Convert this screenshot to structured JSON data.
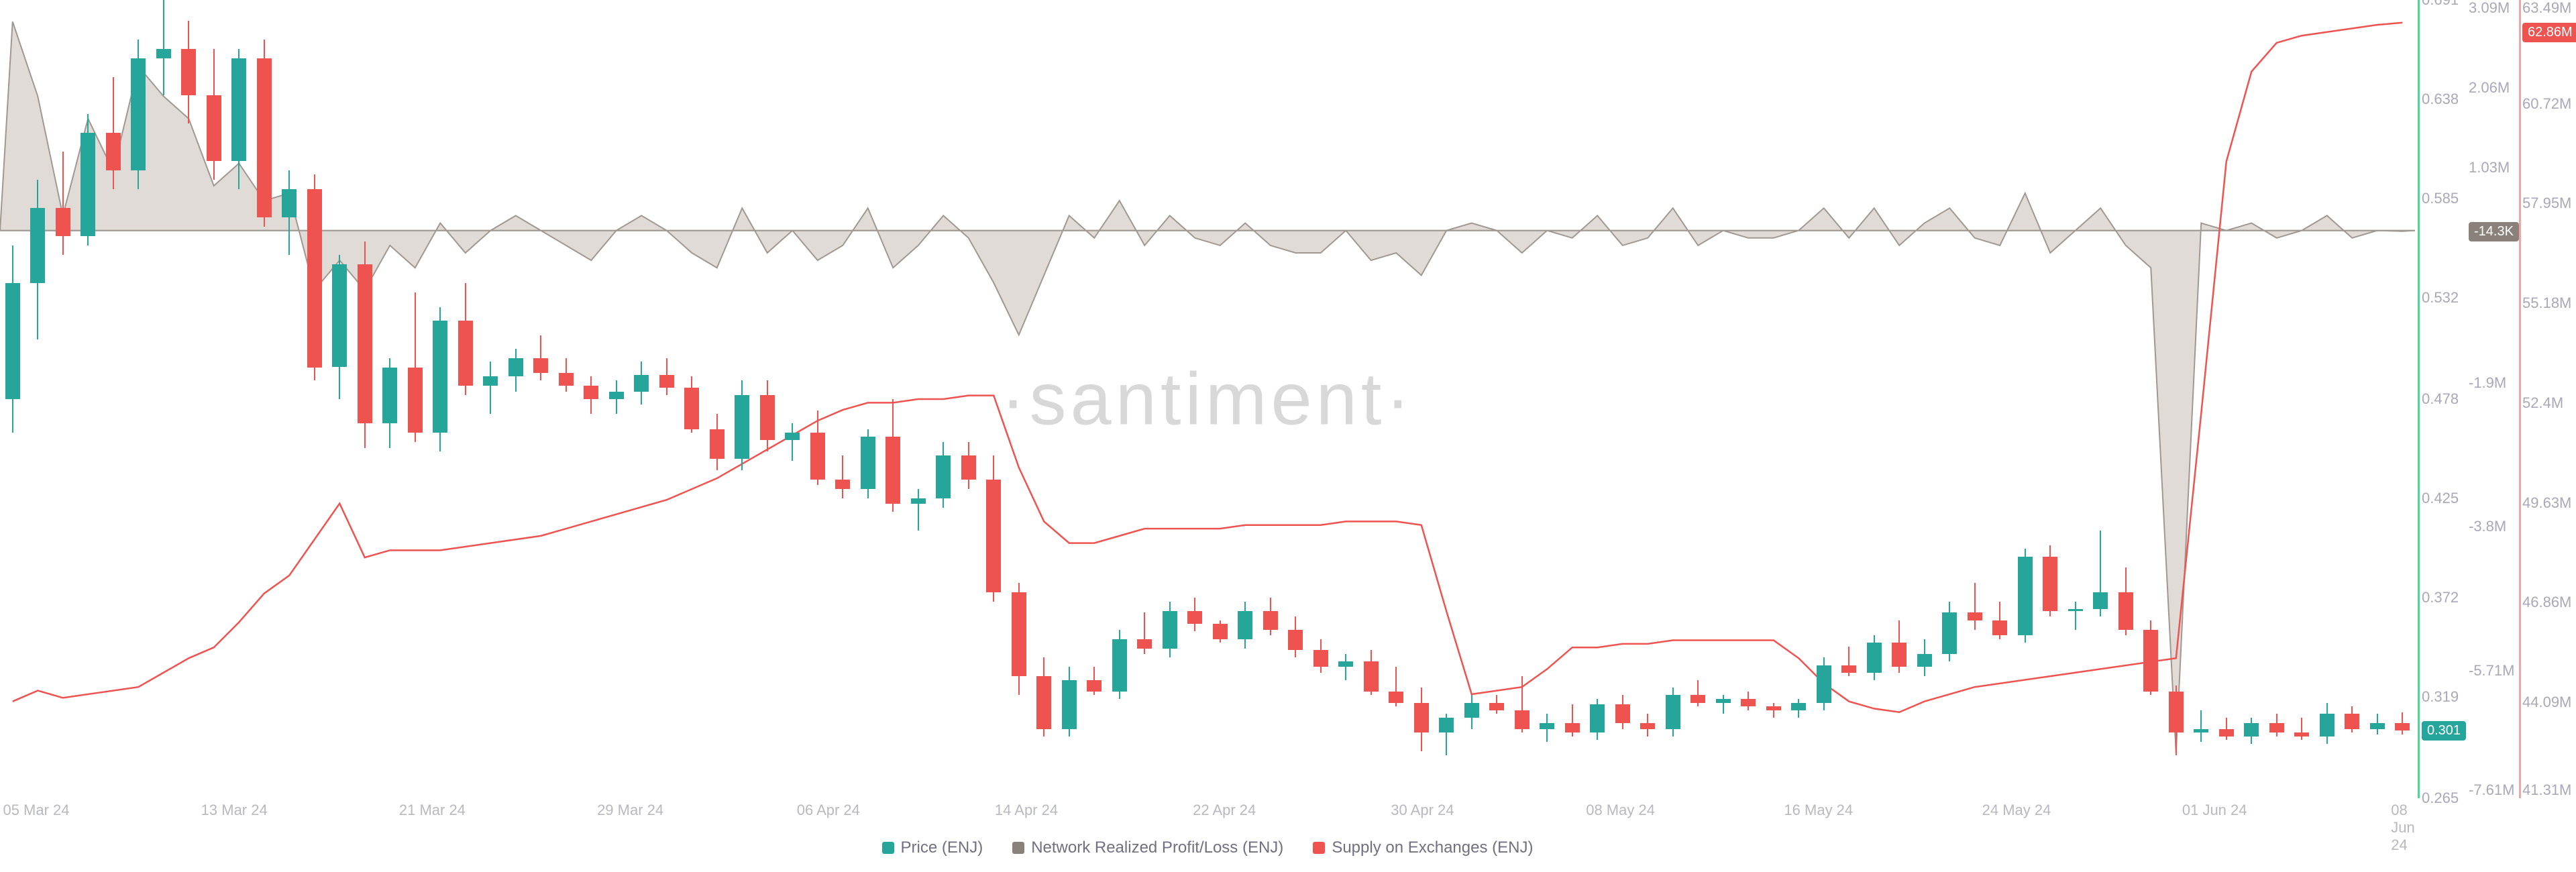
{
  "watermark": "·santiment·",
  "colors": {
    "green": "#26a69a",
    "red": "#ef5350",
    "gray_area": "#c8beb8",
    "gray_line": "#a09890",
    "supply_line": "#ef5350",
    "axis_text": "#a8a8b8",
    "xaxis_text": "#b8b8c0",
    "legend_text": "#707080",
    "baseline": "#c8c8c8",
    "price_badge_bg": "#26a69a",
    "npl_badge_bg": "#8a817a",
    "supply_badge_bg": "#ef5350",
    "y1_line": "#4dd599",
    "y3_line": "#f5a3a0"
  },
  "legend_items": [
    {
      "label": "Price (ENJ)",
      "color": "#26a69a"
    },
    {
      "label": "Network Realized Profit/Loss (ENJ)",
      "color": "#8a817a"
    },
    {
      "label": "Supply on Exchanges (ENJ)",
      "color": "#ef5350"
    }
  ],
  "x_axis": {
    "ticks": [
      "05 Mar 24",
      "13 Mar 24",
      "21 Mar 24",
      "29 Mar 24",
      "06 Apr 24",
      "14 Apr 24",
      "22 Apr 24",
      "30 Apr 24",
      "08 May 24",
      "16 May 24",
      "24 May 24",
      "01 Jun 24",
      "08 Jun 24"
    ],
    "positions_pct": [
      1.5,
      9.7,
      17.9,
      26.1,
      34.3,
      42.5,
      50.7,
      58.9,
      67.1,
      75.3,
      83.5,
      91.7,
      99.5
    ]
  },
  "y_axis_price": {
    "min": 0.265,
    "max": 0.691,
    "ticks": [
      0.691,
      0.638,
      0.585,
      0.532,
      0.478,
      0.425,
      0.372,
      0.319,
      0.265
    ],
    "badge_value": "0.301"
  },
  "y_axis_npl": {
    "min": -7610000,
    "max": 3090000,
    "ticks": [
      "3.09M",
      "2.06M",
      "1.03M",
      "",
      "-1.9M",
      "-3.8M",
      "-5.71M",
      "-7.61M"
    ],
    "tick_positions_pct": [
      1,
      11,
      21,
      null,
      48,
      66,
      84,
      99
    ],
    "baseline_pct": 29,
    "badge_value": "-14.3K",
    "badge_y_pct": 29
  },
  "y_axis_supply": {
    "min": 41310000,
    "max": 63490000,
    "ticks": [
      "63.49M",
      "62.86M",
      "60.72M",
      "57.95M",
      "55.18M",
      "52.4M",
      "49.63M",
      "46.86M",
      "44.09M",
      "41.31M"
    ],
    "tick_positions_pct": [
      1,
      4,
      13,
      25.5,
      38,
      50.5,
      63,
      75.5,
      88,
      99
    ],
    "badge_value": "62.86M",
    "badge_y_pct": 4
  },
  "candles": [
    {
      "o": 0.478,
      "h": 0.56,
      "l": 0.46,
      "c": 0.54,
      "color": "green"
    },
    {
      "o": 0.54,
      "h": 0.595,
      "l": 0.51,
      "c": 0.58,
      "color": "green"
    },
    {
      "o": 0.58,
      "h": 0.61,
      "l": 0.555,
      "c": 0.565,
      "color": "red"
    },
    {
      "o": 0.565,
      "h": 0.63,
      "l": 0.56,
      "c": 0.62,
      "color": "green"
    },
    {
      "o": 0.62,
      "h": 0.65,
      "l": 0.59,
      "c": 0.6,
      "color": "red"
    },
    {
      "o": 0.6,
      "h": 0.67,
      "l": 0.59,
      "c": 0.66,
      "color": "green"
    },
    {
      "o": 0.66,
      "h": 0.691,
      "l": 0.64,
      "c": 0.665,
      "color": "green"
    },
    {
      "o": 0.665,
      "h": 0.68,
      "l": 0.625,
      "c": 0.64,
      "color": "red"
    },
    {
      "o": 0.64,
      "h": 0.665,
      "l": 0.595,
      "c": 0.605,
      "color": "red"
    },
    {
      "o": 0.605,
      "h": 0.665,
      "l": 0.59,
      "c": 0.66,
      "color": "green"
    },
    {
      "o": 0.66,
      "h": 0.67,
      "l": 0.57,
      "c": 0.575,
      "color": "red"
    },
    {
      "o": 0.575,
      "h": 0.6,
      "l": 0.555,
      "c": 0.59,
      "color": "green"
    },
    {
      "o": 0.59,
      "h": 0.598,
      "l": 0.488,
      "c": 0.495,
      "color": "red"
    },
    {
      "o": 0.495,
      "h": 0.555,
      "l": 0.478,
      "c": 0.55,
      "color": "green"
    },
    {
      "o": 0.55,
      "h": 0.562,
      "l": 0.452,
      "c": 0.465,
      "color": "red"
    },
    {
      "o": 0.465,
      "h": 0.5,
      "l": 0.452,
      "c": 0.495,
      "color": "green"
    },
    {
      "o": 0.495,
      "h": 0.535,
      "l": 0.455,
      "c": 0.46,
      "color": "red"
    },
    {
      "o": 0.46,
      "h": 0.527,
      "l": 0.45,
      "c": 0.52,
      "color": "green"
    },
    {
      "o": 0.52,
      "h": 0.54,
      "l": 0.48,
      "c": 0.485,
      "color": "red"
    },
    {
      "o": 0.485,
      "h": 0.498,
      "l": 0.47,
      "c": 0.49,
      "color": "green"
    },
    {
      "o": 0.49,
      "h": 0.505,
      "l": 0.482,
      "c": 0.5,
      "color": "green"
    },
    {
      "o": 0.5,
      "h": 0.512,
      "l": 0.488,
      "c": 0.492,
      "color": "red"
    },
    {
      "o": 0.492,
      "h": 0.5,
      "l": 0.482,
      "c": 0.485,
      "color": "red"
    },
    {
      "o": 0.485,
      "h": 0.49,
      "l": 0.47,
      "c": 0.478,
      "color": "red"
    },
    {
      "o": 0.478,
      "h": 0.488,
      "l": 0.47,
      "c": 0.482,
      "color": "green"
    },
    {
      "o": 0.482,
      "h": 0.498,
      "l": 0.475,
      "c": 0.491,
      "color": "green"
    },
    {
      "o": 0.491,
      "h": 0.5,
      "l": 0.48,
      "c": 0.484,
      "color": "red"
    },
    {
      "o": 0.484,
      "h": 0.49,
      "l": 0.46,
      "c": 0.462,
      "color": "red"
    },
    {
      "o": 0.462,
      "h": 0.47,
      "l": 0.44,
      "c": 0.446,
      "color": "red"
    },
    {
      "o": 0.446,
      "h": 0.488,
      "l": 0.44,
      "c": 0.48,
      "color": "green"
    },
    {
      "o": 0.48,
      "h": 0.488,
      "l": 0.45,
      "c": 0.456,
      "color": "red"
    },
    {
      "o": 0.456,
      "h": 0.465,
      "l": 0.445,
      "c": 0.46,
      "color": "green"
    },
    {
      "o": 0.46,
      "h": 0.472,
      "l": 0.432,
      "c": 0.435,
      "color": "red"
    },
    {
      "o": 0.435,
      "h": 0.448,
      "l": 0.425,
      "c": 0.43,
      "color": "red"
    },
    {
      "o": 0.43,
      "h": 0.462,
      "l": 0.425,
      "c": 0.458,
      "color": "green"
    },
    {
      "o": 0.458,
      "h": 0.478,
      "l": 0.418,
      "c": 0.422,
      "color": "red"
    },
    {
      "o": 0.422,
      "h": 0.43,
      "l": 0.408,
      "c": 0.425,
      "color": "green"
    },
    {
      "o": 0.425,
      "h": 0.455,
      "l": 0.42,
      "c": 0.448,
      "color": "green"
    },
    {
      "o": 0.448,
      "h": 0.455,
      "l": 0.43,
      "c": 0.435,
      "color": "red"
    },
    {
      "o": 0.435,
      "h": 0.448,
      "l": 0.37,
      "c": 0.375,
      "color": "red"
    },
    {
      "o": 0.375,
      "h": 0.38,
      "l": 0.32,
      "c": 0.33,
      "color": "red"
    },
    {
      "o": 0.33,
      "h": 0.34,
      "l": 0.298,
      "c": 0.302,
      "color": "red"
    },
    {
      "o": 0.302,
      "h": 0.335,
      "l": 0.298,
      "c": 0.328,
      "color": "green"
    },
    {
      "o": 0.328,
      "h": 0.335,
      "l": 0.32,
      "c": 0.322,
      "color": "red"
    },
    {
      "o": 0.322,
      "h": 0.355,
      "l": 0.318,
      "c": 0.35,
      "color": "green"
    },
    {
      "o": 0.35,
      "h": 0.364,
      "l": 0.342,
      "c": 0.345,
      "color": "red"
    },
    {
      "o": 0.345,
      "h": 0.37,
      "l": 0.34,
      "c": 0.365,
      "color": "green"
    },
    {
      "o": 0.365,
      "h": 0.372,
      "l": 0.354,
      "c": 0.358,
      "color": "red"
    },
    {
      "o": 0.358,
      "h": 0.36,
      "l": 0.348,
      "c": 0.35,
      "color": "red"
    },
    {
      "o": 0.35,
      "h": 0.37,
      "l": 0.345,
      "c": 0.365,
      "color": "green"
    },
    {
      "o": 0.365,
      "h": 0.372,
      "l": 0.352,
      "c": 0.355,
      "color": "red"
    },
    {
      "o": 0.355,
      "h": 0.362,
      "l": 0.34,
      "c": 0.344,
      "color": "red"
    },
    {
      "o": 0.344,
      "h": 0.35,
      "l": 0.332,
      "c": 0.335,
      "color": "red"
    },
    {
      "o": 0.335,
      "h": 0.342,
      "l": 0.328,
      "c": 0.338,
      "color": "green"
    },
    {
      "o": 0.338,
      "h": 0.344,
      "l": 0.32,
      "c": 0.322,
      "color": "red"
    },
    {
      "o": 0.322,
      "h": 0.335,
      "l": 0.314,
      "c": 0.316,
      "color": "red"
    },
    {
      "o": 0.316,
      "h": 0.324,
      "l": 0.29,
      "c": 0.3,
      "color": "red"
    },
    {
      "o": 0.3,
      "h": 0.31,
      "l": 0.288,
      "c": 0.308,
      "color": "green"
    },
    {
      "o": 0.308,
      "h": 0.32,
      "l": 0.302,
      "c": 0.316,
      "color": "green"
    },
    {
      "o": 0.316,
      "h": 0.32,
      "l": 0.31,
      "c": 0.312,
      "color": "red"
    },
    {
      "o": 0.312,
      "h": 0.33,
      "l": 0.3,
      "c": 0.302,
      "color": "red"
    },
    {
      "o": 0.302,
      "h": 0.31,
      "l": 0.295,
      "c": 0.305,
      "color": "green"
    },
    {
      "o": 0.305,
      "h": 0.315,
      "l": 0.298,
      "c": 0.3,
      "color": "red"
    },
    {
      "o": 0.3,
      "h": 0.318,
      "l": 0.296,
      "c": 0.315,
      "color": "green"
    },
    {
      "o": 0.315,
      "h": 0.32,
      "l": 0.302,
      "c": 0.305,
      "color": "red"
    },
    {
      "o": 0.305,
      "h": 0.31,
      "l": 0.298,
      "c": 0.302,
      "color": "red"
    },
    {
      "o": 0.302,
      "h": 0.324,
      "l": 0.298,
      "c": 0.32,
      "color": "green"
    },
    {
      "o": 0.32,
      "h": 0.328,
      "l": 0.314,
      "c": 0.316,
      "color": "red"
    },
    {
      "o": 0.316,
      "h": 0.32,
      "l": 0.31,
      "c": 0.318,
      "color": "green"
    },
    {
      "o": 0.318,
      "h": 0.322,
      "l": 0.312,
      "c": 0.314,
      "color": "red"
    },
    {
      "o": 0.314,
      "h": 0.316,
      "l": 0.308,
      "c": 0.312,
      "color": "red"
    },
    {
      "o": 0.312,
      "h": 0.318,
      "l": 0.308,
      "c": 0.316,
      "color": "green"
    },
    {
      "o": 0.316,
      "h": 0.34,
      "l": 0.312,
      "c": 0.336,
      "color": "green"
    },
    {
      "o": 0.336,
      "h": 0.346,
      "l": 0.33,
      "c": 0.332,
      "color": "red"
    },
    {
      "o": 0.332,
      "h": 0.352,
      "l": 0.328,
      "c": 0.348,
      "color": "green"
    },
    {
      "o": 0.348,
      "h": 0.36,
      "l": 0.332,
      "c": 0.335,
      "color": "red"
    },
    {
      "o": 0.335,
      "h": 0.35,
      "l": 0.33,
      "c": 0.342,
      "color": "green"
    },
    {
      "o": 0.342,
      "h": 0.37,
      "l": 0.338,
      "c": 0.364,
      "color": "green"
    },
    {
      "o": 0.364,
      "h": 0.38,
      "l": 0.355,
      "c": 0.36,
      "color": "red"
    },
    {
      "o": 0.36,
      "h": 0.37,
      "l": 0.35,
      "c": 0.352,
      "color": "red"
    },
    {
      "o": 0.352,
      "h": 0.398,
      "l": 0.348,
      "c": 0.394,
      "color": "green"
    },
    {
      "o": 0.394,
      "h": 0.4,
      "l": 0.362,
      "c": 0.365,
      "color": "red"
    },
    {
      "o": 0.365,
      "h": 0.37,
      "l": 0.355,
      "c": 0.366,
      "color": "green"
    },
    {
      "o": 0.366,
      "h": 0.408,
      "l": 0.362,
      "c": 0.375,
      "color": "green"
    },
    {
      "o": 0.375,
      "h": 0.388,
      "l": 0.352,
      "c": 0.355,
      "color": "red"
    },
    {
      "o": 0.355,
      "h": 0.36,
      "l": 0.32,
      "c": 0.322,
      "color": "red"
    },
    {
      "o": 0.322,
      "h": 0.325,
      "l": 0.288,
      "c": 0.3,
      "color": "red"
    },
    {
      "o": 0.3,
      "h": 0.312,
      "l": 0.295,
      "c": 0.302,
      "color": "green"
    },
    {
      "o": 0.302,
      "h": 0.308,
      "l": 0.296,
      "c": 0.298,
      "color": "red"
    },
    {
      "o": 0.298,
      "h": 0.308,
      "l": 0.294,
      "c": 0.305,
      "color": "green"
    },
    {
      "o": 0.305,
      "h": 0.31,
      "l": 0.298,
      "c": 0.3,
      "color": "red"
    },
    {
      "o": 0.3,
      "h": 0.308,
      "l": 0.296,
      "c": 0.298,
      "color": "red"
    },
    {
      "o": 0.298,
      "h": 0.316,
      "l": 0.294,
      "c": 0.31,
      "color": "green"
    },
    {
      "o": 0.31,
      "h": 0.314,
      "l": 0.3,
      "c": 0.302,
      "color": "red"
    },
    {
      "o": 0.302,
      "h": 0.31,
      "l": 0.299,
      "c": 0.305,
      "color": "green"
    },
    {
      "o": 0.305,
      "h": 0.311,
      "l": 0.299,
      "c": 0.301,
      "color": "red"
    }
  ],
  "npl": [
    2.8,
    1.8,
    0.2,
    1.5,
    0.8,
    2.2,
    1.8,
    1.5,
    0.6,
    0.9,
    0.4,
    0.5,
    -0.8,
    -0.4,
    -0.8,
    -0.2,
    -0.5,
    0.1,
    -0.3,
    0,
    0.2,
    0,
    -0.2,
    -0.4,
    0,
    0.2,
    0,
    -0.3,
    -0.5,
    0.3,
    -0.3,
    0,
    -0.4,
    -0.2,
    0.3,
    -0.5,
    -0.2,
    0.2,
    -0.1,
    -0.7,
    -1.4,
    -0.6,
    0.2,
    -0.1,
    0.4,
    -0.2,
    0.2,
    -0.1,
    -0.2,
    0.1,
    -0.2,
    -0.3,
    -0.3,
    0,
    -0.4,
    -0.3,
    -0.6,
    0,
    0.1,
    0,
    -0.3,
    0,
    -0.1,
    0.2,
    -0.2,
    -0.1,
    0.3,
    -0.2,
    0,
    -0.1,
    -0.1,
    0,
    0.3,
    -0.1,
    0.3,
    -0.2,
    0.1,
    0.3,
    -0.1,
    -0.2,
    0.5,
    -0.3,
    0,
    0.3,
    -0.2,
    -0.5,
    -7.0,
    0.1,
    0,
    0.1,
    -0.1,
    0,
    0.2,
    -0.1,
    0,
    -0.01
  ],
  "supply": [
    44.0,
    44.3,
    44.1,
    44.2,
    44.3,
    44.4,
    44.8,
    45.2,
    45.5,
    46.2,
    47.0,
    47.5,
    48.5,
    49.5,
    48.0,
    48.2,
    48.2,
    48.2,
    48.3,
    48.4,
    48.5,
    48.6,
    48.8,
    49.0,
    49.2,
    49.4,
    49.6,
    49.9,
    50.2,
    50.6,
    51.0,
    51.4,
    51.8,
    52.1,
    52.3,
    52.3,
    52.4,
    52.4,
    52.5,
    52.5,
    50.5,
    49.0,
    48.4,
    48.4,
    48.6,
    48.8,
    48.8,
    48.8,
    48.8,
    48.9,
    48.9,
    48.9,
    48.9,
    49.0,
    49.0,
    49.0,
    48.9,
    46.5,
    44.2,
    44.3,
    44.4,
    44.9,
    45.5,
    45.5,
    45.6,
    45.6,
    45.7,
    45.7,
    45.7,
    45.7,
    45.7,
    45.2,
    44.5,
    44.0,
    43.8,
    43.7,
    44.0,
    44.2,
    44.4,
    44.5,
    44.6,
    44.7,
    44.8,
    44.9,
    45.0,
    45.1,
    45.2,
    52.0,
    59.0,
    61.5,
    62.3,
    62.5,
    62.6,
    62.7,
    62.8,
    62.86
  ]
}
